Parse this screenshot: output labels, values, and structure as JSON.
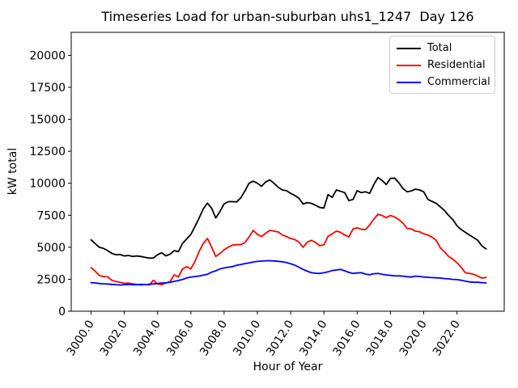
{
  "chart_data": {
    "type": "line",
    "title": "Timeseries Load for urban-suburban uhs1_1247  Day 126",
    "xlabel": "Hour of Year",
    "ylabel": "kW total",
    "grid": false,
    "legend_position": "upper right",
    "x_ticks": [
      3000.0,
      3002.0,
      3004.0,
      3006.0,
      3008.0,
      3010.0,
      3012.0,
      3014.0,
      3016.0,
      3018.0,
      3020.0,
      3022.0
    ],
    "x_tick_labels": [
      "3000.0",
      "3002.0",
      "3004.0",
      "3006.0",
      "3008.0",
      "3010.0",
      "3012.0",
      "3014.0",
      "3016.0",
      "3018.0",
      "3020.0",
      "3022.0"
    ],
    "y_ticks": [
      0,
      2500,
      5000,
      7500,
      10000,
      12500,
      15000,
      17500,
      20000
    ],
    "y_tick_labels": [
      "0",
      "2500",
      "5000",
      "7500",
      "10000",
      "12500",
      "15000",
      "17500",
      "20000"
    ],
    "xlim": [
      2998.81,
      3024.84
    ],
    "ylim": [
      0,
      21800
    ],
    "x": [
      3000.0,
      3000.25,
      3000.5,
      3000.75,
      3001.0,
      3001.25,
      3001.5,
      3001.75,
      3002.0,
      3002.25,
      3002.5,
      3002.75,
      3003.0,
      3003.25,
      3003.5,
      3003.75,
      3004.0,
      3004.25,
      3004.5,
      3004.75,
      3005.0,
      3005.25,
      3005.5,
      3005.75,
      3006.0,
      3006.25,
      3006.5,
      3006.75,
      3007.0,
      3007.25,
      3007.5,
      3007.75,
      3008.0,
      3008.25,
      3008.5,
      3008.75,
      3009.0,
      3009.25,
      3009.5,
      3009.75,
      3010.0,
      3010.25,
      3010.5,
      3010.75,
      3011.0,
      3011.25,
      3011.5,
      3011.75,
      3012.0,
      3012.25,
      3012.5,
      3012.75,
      3013.0,
      3013.25,
      3013.5,
      3013.75,
      3014.0,
      3014.25,
      3014.5,
      3014.75,
      3015.0,
      3015.25,
      3015.5,
      3015.75,
      3016.0,
      3016.25,
      3016.5,
      3016.75,
      3017.0,
      3017.25,
      3017.5,
      3017.75,
      3018.0,
      3018.25,
      3018.5,
      3018.75,
      3019.0,
      3019.25,
      3019.5,
      3019.75,
      3020.0,
      3020.25,
      3020.5,
      3020.75,
      3021.0,
      3021.25,
      3021.5,
      3021.75,
      3022.0,
      3022.25,
      3022.5,
      3022.75,
      3023.0,
      3023.25,
      3023.5,
      3023.75
    ],
    "series": [
      {
        "name": "Total",
        "color": "#000000",
        "values": [
          5580,
          5280,
          5000,
          4910,
          4740,
          4520,
          4420,
          4430,
          4320,
          4360,
          4280,
          4320,
          4280,
          4210,
          4150,
          4160,
          4420,
          4570,
          4330,
          4460,
          4740,
          4650,
          5300,
          5650,
          6000,
          6620,
          7300,
          8000,
          8450,
          8050,
          7290,
          7790,
          8390,
          8560,
          8570,
          8540,
          8850,
          9400,
          10000,
          10170,
          10000,
          9760,
          10110,
          10260,
          10000,
          9690,
          9480,
          9420,
          9210,
          9050,
          8820,
          8380,
          8490,
          8430,
          8280,
          8110,
          8070,
          9120,
          8900,
          9480,
          9370,
          9270,
          8650,
          8740,
          9420,
          9270,
          9330,
          9210,
          9900,
          10450,
          10220,
          9900,
          10380,
          10400,
          10050,
          9590,
          9330,
          9400,
          9540,
          9480,
          9330,
          8740,
          8580,
          8430,
          8150,
          7860,
          7480,
          7160,
          6680,
          6380,
          6170,
          5960,
          5750,
          5540,
          5100,
          4870
        ]
      },
      {
        "name": "Residential",
        "color": "#ff0000",
        "values": [
          3410,
          3130,
          2790,
          2700,
          2690,
          2420,
          2320,
          2260,
          2180,
          2200,
          2140,
          2090,
          2050,
          2090,
          2040,
          2420,
          2120,
          2080,
          2200,
          2310,
          2840,
          2680,
          3300,
          3480,
          3310,
          3900,
          4690,
          5300,
          5690,
          5000,
          4280,
          4510,
          4800,
          5010,
          5160,
          5200,
          5200,
          5370,
          5800,
          6320,
          6010,
          5830,
          6100,
          6320,
          6260,
          6200,
          5960,
          5830,
          5690,
          5600,
          5400,
          5000,
          5410,
          5540,
          5370,
          5120,
          5200,
          5850,
          6050,
          6260,
          6170,
          5960,
          5800,
          6430,
          6530,
          6400,
          6380,
          6740,
          7200,
          7580,
          7480,
          7310,
          7480,
          7370,
          7160,
          6890,
          6470,
          6440,
          6260,
          6210,
          6050,
          5960,
          5790,
          5540,
          4950,
          4640,
          4280,
          4070,
          3790,
          3430,
          3010,
          2950,
          2890,
          2740,
          2590,
          2640
        ]
      },
      {
        "name": "Commercial",
        "color": "#0000ff",
        "values": [
          2230,
          2210,
          2170,
          2140,
          2130,
          2100,
          2080,
          2050,
          2070,
          2100,
          2060,
          2070,
          2100,
          2080,
          2110,
          2130,
          2170,
          2200,
          2220,
          2260,
          2330,
          2400,
          2480,
          2600,
          2670,
          2710,
          2750,
          2820,
          2890,
          3050,
          3160,
          3300,
          3380,
          3440,
          3490,
          3580,
          3650,
          3720,
          3770,
          3850,
          3890,
          3920,
          3940,
          3950,
          3930,
          3900,
          3870,
          3800,
          3710,
          3600,
          3440,
          3270,
          3130,
          3010,
          2970,
          2950,
          3010,
          3080,
          3180,
          3220,
          3270,
          3160,
          3030,
          2950,
          2990,
          3010,
          2900,
          2850,
          2930,
          2950,
          2890,
          2840,
          2800,
          2770,
          2760,
          2740,
          2700,
          2670,
          2740,
          2720,
          2670,
          2650,
          2630,
          2610,
          2590,
          2550,
          2530,
          2490,
          2470,
          2420,
          2350,
          2290,
          2260,
          2260,
          2230,
          2210
        ]
      }
    ],
    "colors": {
      "axes": "#000000",
      "legend_border": "#cccccc",
      "background": "#ffffff"
    }
  }
}
